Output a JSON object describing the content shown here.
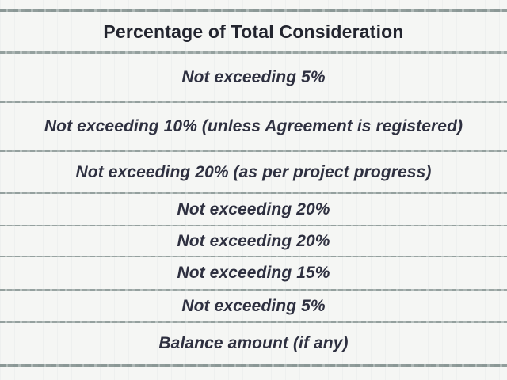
{
  "table": {
    "title": "Payment schedule table (cropped column)",
    "header": "Percentage of Total Consideration",
    "rows": [
      "Not exceeding 5%",
      "Not exceeding 10% (unless Agreement is registered)",
      "Not exceeding 20% (as per project progress)",
      "Not exceeding 20%",
      "Not exceeding 20%",
      "Not exceeding 15%",
      "Not exceeding 5%",
      "Balance amount (if any)"
    ],
    "colors": {
      "background": "#f5f6f4",
      "header_text": "#23252f",
      "body_text": "#2e3040",
      "rule": "#94a09e"
    }
  }
}
